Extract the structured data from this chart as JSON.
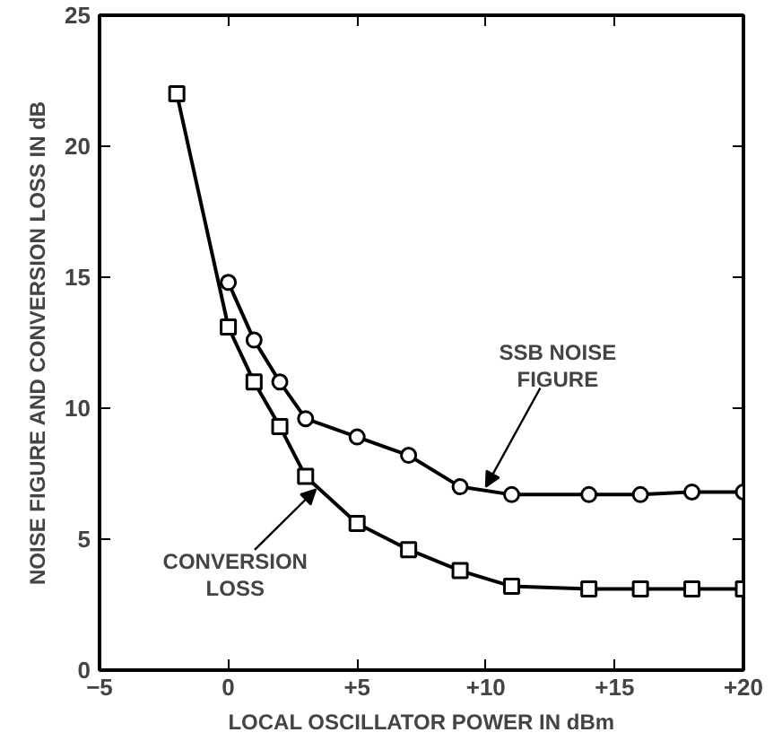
{
  "chart_data": {
    "type": "line",
    "xlabel": "LOCAL OSCILLATOR POWER IN dBm",
    "ylabel": "NOISE FIGURE AND CONVERSION LOSS IN dB",
    "xlim": [
      -5,
      20
    ],
    "ylim": [
      0,
      25
    ],
    "xticks": [
      {
        "value": -5,
        "label": "−5"
      },
      0,
      {
        "value": 5,
        "label": "+5"
      },
      {
        "value": 10,
        "label": "+10"
      },
      {
        "value": 15,
        "label": "+15"
      },
      {
        "value": 20,
        "label": "+20"
      }
    ],
    "yticks": [
      0,
      5,
      10,
      15,
      20,
      25
    ],
    "grid": false,
    "line_style": "solid",
    "series": [
      {
        "color": "#000000",
        "marker": "circle",
        "x": [
          0,
          1,
          2,
          3,
          5,
          7,
          9,
          11,
          14,
          16,
          18,
          20
        ],
        "values": [
          14.8,
          12.6,
          11,
          9.6,
          8.9,
          8.2,
          7.0,
          6.7,
          6.7,
          6.7,
          6.8,
          6.8
        ]
      },
      {
        "color": "#000000",
        "marker": "square",
        "x": [
          -2,
          0,
          1,
          2,
          3,
          5,
          7,
          9,
          11,
          14,
          16,
          18,
          20
        ],
        "values": [
          22,
          13.1,
          11,
          9.3,
          7.4,
          5.6,
          4.6,
          3.8,
          3.2,
          3.1,
          3.1,
          3.1,
          3.1
        ]
      }
    ],
    "annotations": [
      {
        "text": "SSB NOISE\nFIGURE",
        "x": 10,
        "y": 7.0
      },
      {
        "text": "CONVERSION\nLOSS",
        "x": 3.4,
        "y": 6.9
      }
    ]
  }
}
